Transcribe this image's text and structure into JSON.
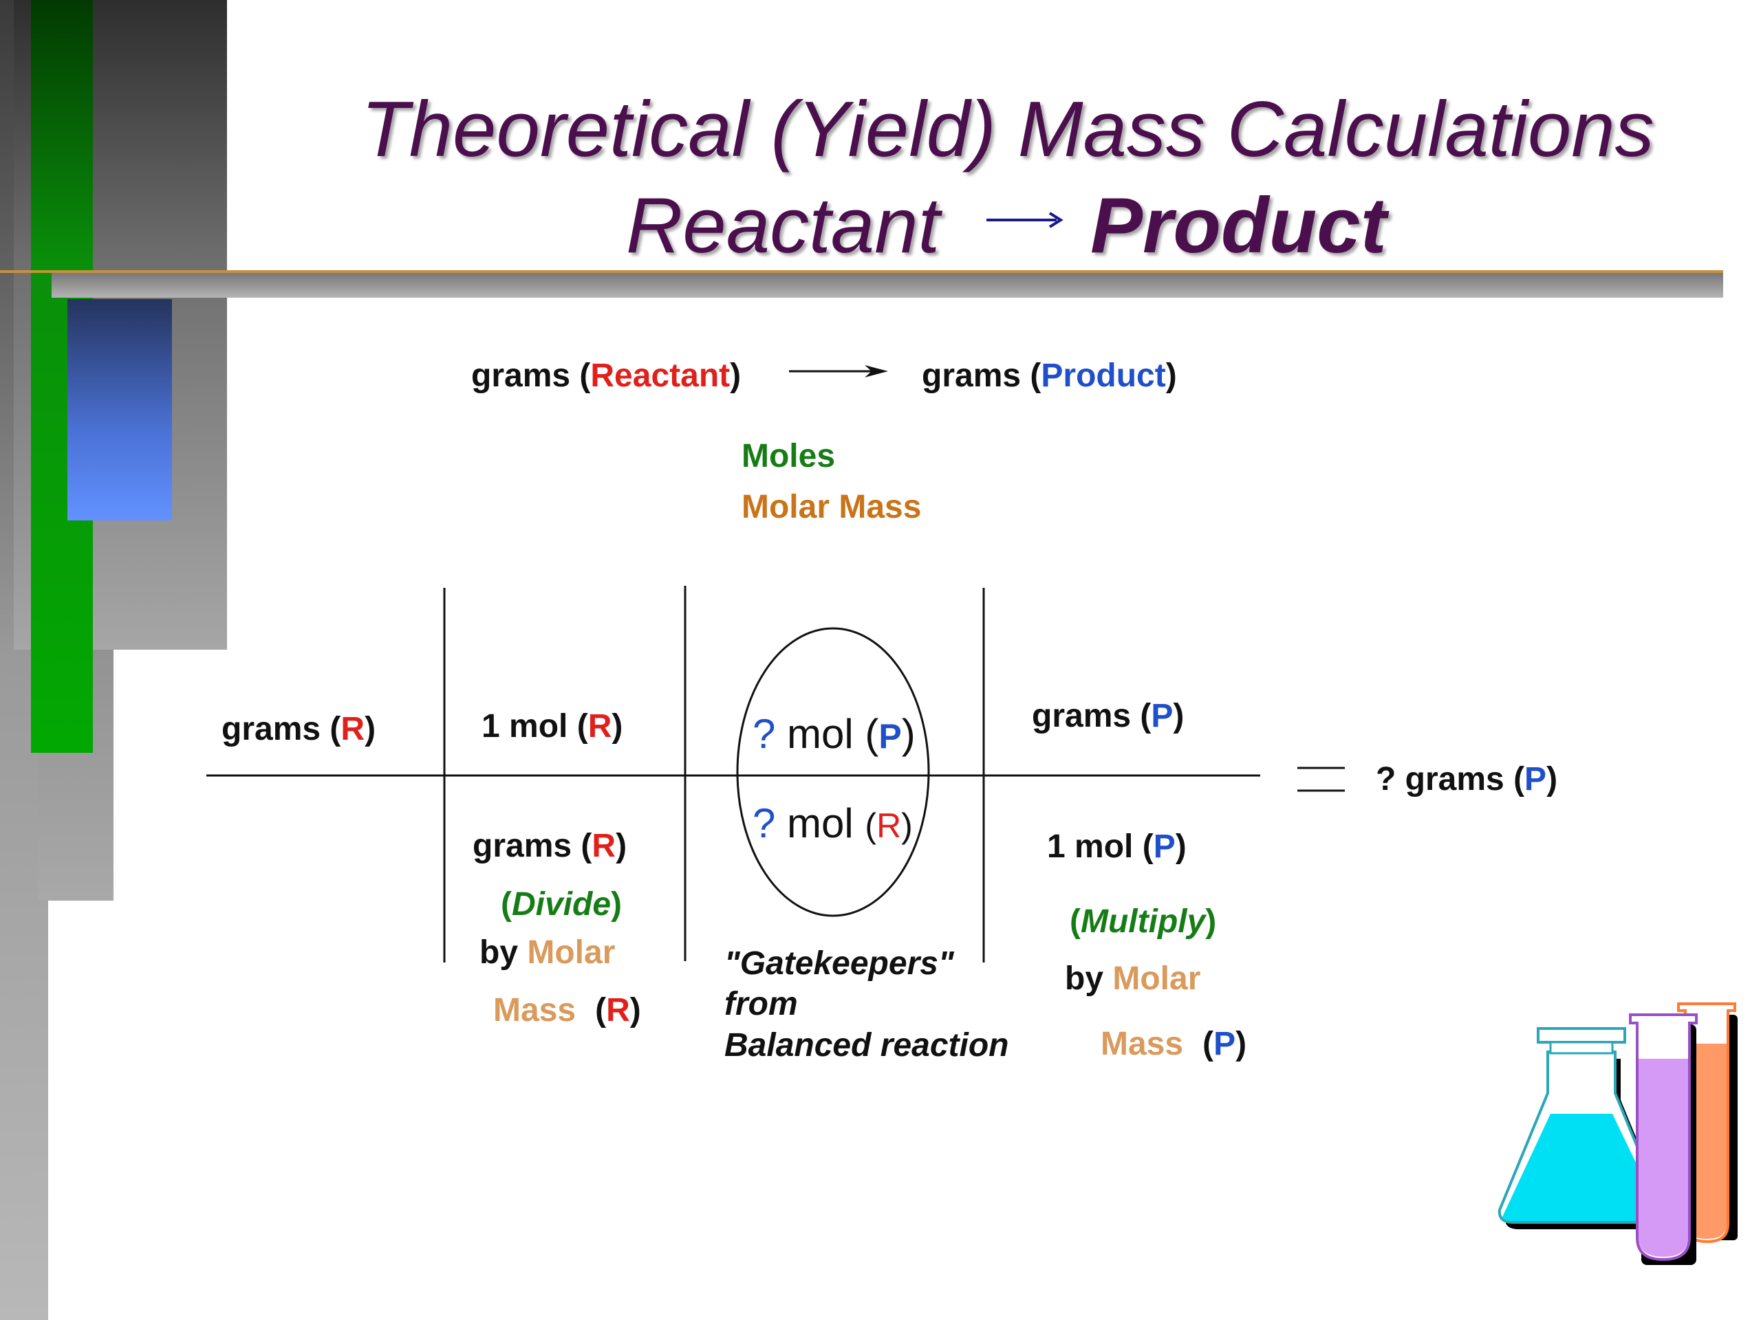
{
  "title": {
    "line1": "Theoretical (Yield) Mass Calculations",
    "reactant": "Reactant",
    "arrow": "→",
    "product": "Product"
  },
  "top_row": {
    "left_prefix": "grams (",
    "left_word": "Reactant",
    "left_suffix": ")",
    "right_prefix": "grams (",
    "right_word": "Product",
    "right_suffix": ")"
  },
  "legend": {
    "moles": "Moles",
    "molar_mass": "Molar Mass"
  },
  "grid": {
    "start": {
      "prefix": "grams (",
      "letter": "R",
      "suffix": ")"
    },
    "col1_top": {
      "prefix": "1 mol (",
      "letter": "R",
      "suffix": ")"
    },
    "col1_bottom": {
      "prefix": "grams (",
      "letter": "R",
      "suffix": ")"
    },
    "divide": {
      "open": "(",
      "word": "Divide",
      "close": ")"
    },
    "col1_by": {
      "by": "by ",
      "molar": "Molar"
    },
    "col1_mass": {
      "mass": "Mass",
      "open": "(",
      "letter": "R",
      "close": ")"
    },
    "col2_top": {
      "q": "?",
      "text": " mol (",
      "letter": "P",
      "close": ")"
    },
    "col2_bottom": {
      "q": "?",
      "text": " mol ",
      "open": "(",
      "letter": "R",
      "close": ")"
    },
    "gatekeepers": [
      "\"Gatekeepers\"",
      "from",
      "Balanced reaction"
    ],
    "col3_top": {
      "prefix": "grams (",
      "letter": "P",
      "suffix": ")"
    },
    "col3_bottom": {
      "prefix": "1 mol (",
      "letter": "P",
      "suffix": ")"
    },
    "multiply": {
      "open": "(",
      "word": "Multiply",
      "close": ")"
    },
    "col3_by": {
      "by": "by ",
      "molar": "Molar"
    },
    "col3_mass": {
      "mass": "Mass",
      "open": "(",
      "letter": "P",
      "close": ")"
    },
    "result": {
      "prefix": "? grams (",
      "letter": "P",
      "suffix": ")"
    }
  },
  "colors": {
    "title": "#4a0f4c",
    "reactant_red": "#e0201b",
    "product_blue": "#1f4fc9",
    "moles_green": "#167d16",
    "molar_mass_orange": "#c97418",
    "flask_cyan": "#00e0f5",
    "tube_purple": "#d49af5",
    "tube_orange": "#ff9a66"
  },
  "icons": [
    "laboratory-glassware-icon"
  ]
}
